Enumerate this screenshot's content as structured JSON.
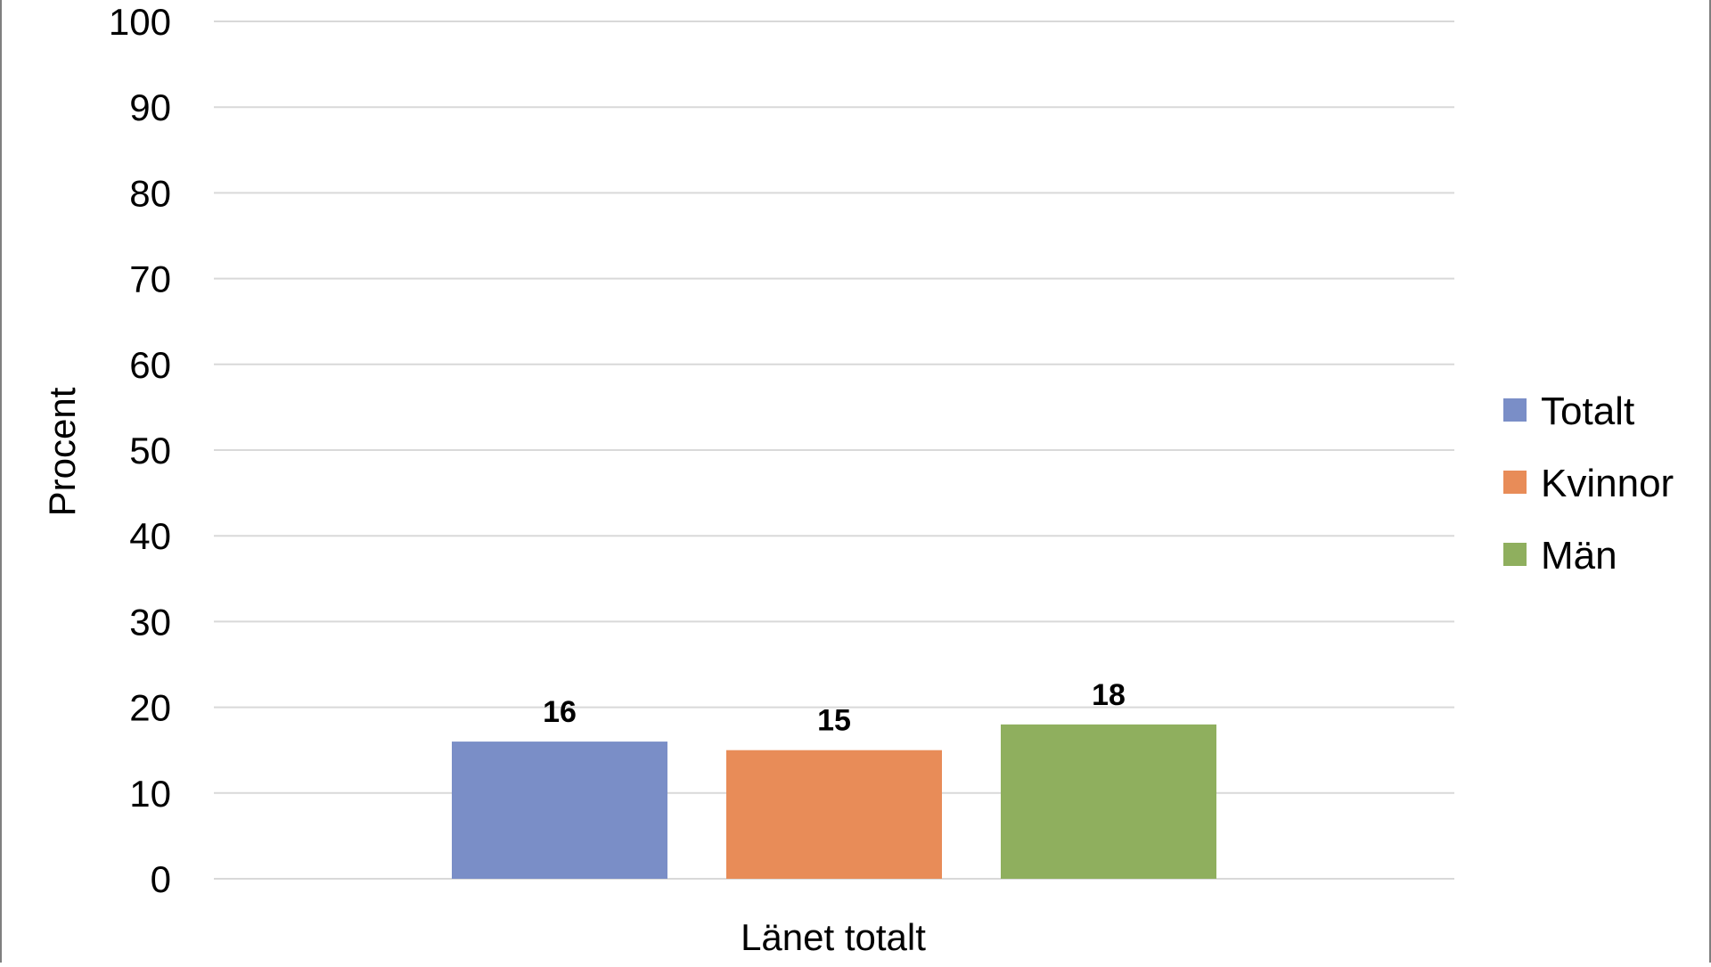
{
  "chart_data": {
    "type": "bar",
    "categories": [
      "Länet totalt"
    ],
    "series": [
      {
        "name": "Totalt",
        "values": [
          16
        ],
        "color": "#7a8ec7"
      },
      {
        "name": "Kvinnor",
        "values": [
          15
        ],
        "color": "#e88c58"
      },
      {
        "name": "Män",
        "values": [
          18
        ],
        "color": "#8faf5e"
      }
    ],
    "data_labels": [
      "16",
      "15",
      "18"
    ],
    "ylabel": "Procent",
    "ylim": [
      0,
      100
    ],
    "yticks": [
      "0",
      "10",
      "20",
      "30",
      "40",
      "50",
      "60",
      "70",
      "80",
      "90",
      "100"
    ],
    "grid": true,
    "legend_position": "right"
  }
}
